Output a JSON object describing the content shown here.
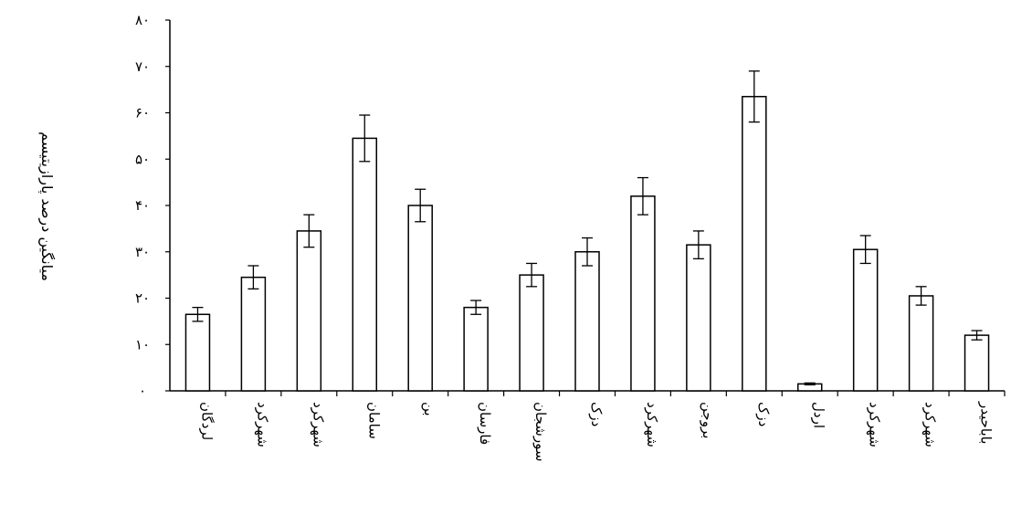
{
  "chart_data": {
    "type": "bar",
    "ylabel": "میانگین درصد پارازیتیسم",
    "ylim": [
      0,
      80
    ],
    "yticks": [
      {
        "value": 0,
        "label": "۰"
      },
      {
        "value": 10,
        "label": "۱۰"
      },
      {
        "value": 20,
        "label": "۲۰"
      },
      {
        "value": 30,
        "label": "۳۰"
      },
      {
        "value": 40,
        "label": "۴۰"
      },
      {
        "value": 50,
        "label": "۵۰"
      },
      {
        "value": 60,
        "label": "۶۰"
      },
      {
        "value": 70,
        "label": "۷۰"
      },
      {
        "value": 80,
        "label": "۸۰"
      }
    ],
    "categories": [
      "لردگان",
      "شهرکرد",
      "شهرکرد",
      "سامان",
      "بن",
      "فارسان",
      "سورشجان",
      "دزک",
      "شهرکرد",
      "بروجن",
      "دزک",
      "اردل",
      "شهرکرد",
      "شهرکرد",
      "باباحیدر"
    ],
    "values": [
      16.5,
      24.5,
      34.5,
      54.5,
      40,
      18,
      25,
      30,
      42,
      31.5,
      63.5,
      1.5,
      30.5,
      20.5,
      12
    ],
    "errors": [
      1.5,
      2.5,
      3.5,
      5,
      3.5,
      1.5,
      2.5,
      3,
      4,
      3,
      5.5,
      0.2,
      3,
      2,
      1
    ],
    "grid": false,
    "legend": "none",
    "colors": {
      "bar_fill": "#ffffff",
      "bar_stroke": "#000000",
      "error_bar": "#000000",
      "axis": "#000000"
    }
  }
}
